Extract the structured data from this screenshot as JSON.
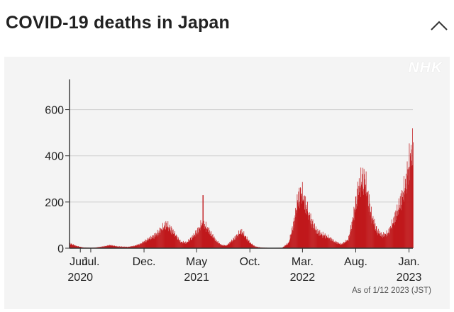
{
  "header": {
    "title": "COVID-19 deaths in Japan"
  },
  "panel": {
    "logo": "NHK",
    "note": "As of 1/12 2023 (JST)"
  },
  "chart_data": {
    "type": "bar",
    "title": "COVID-19 deaths in Japan",
    "xlabel": "",
    "ylabel": "",
    "ylim": [
      0,
      700
    ],
    "yticks": [
      0,
      200,
      400,
      600
    ],
    "grid": "horizontal",
    "bar_color": "#c0191c",
    "x_start": "2020-05-01",
    "x_end": "2023-01-12",
    "xtick_labels": [
      {
        "date": "2020-06-01",
        "label": "Jun.",
        "year": "2020"
      },
      {
        "date": "2020-07-01",
        "label": "Jul.",
        "year": ""
      },
      {
        "date": "2020-12-01",
        "label": "Dec.",
        "year": ""
      },
      {
        "date": "2021-05-01",
        "label": "May",
        "year": "2021"
      },
      {
        "date": "2021-10-01",
        "label": "Oct.",
        "year": ""
      },
      {
        "date": "2022-03-01",
        "label": "Mar.",
        "year": "2022"
      },
      {
        "date": "2022-08-01",
        "label": "Aug.",
        "year": ""
      },
      {
        "date": "2023-01-01",
        "label": "Jan.",
        "year": "2023"
      }
    ],
    "series": [
      {
        "points": [
          [
            "2020-05-01",
            22
          ],
          [
            "2020-05-20",
            10
          ],
          [
            "2020-06-10",
            3
          ],
          [
            "2020-07-01",
            2
          ],
          [
            "2020-07-15",
            3
          ],
          [
            "2020-08-05",
            8
          ],
          [
            "2020-08-25",
            14
          ],
          [
            "2020-09-15",
            8
          ],
          [
            "2020-10-15",
            6
          ],
          [
            "2020-11-01",
            10
          ],
          [
            "2020-11-20",
            20
          ],
          [
            "2020-12-10",
            40
          ],
          [
            "2021-01-01",
            60
          ],
          [
            "2021-01-20",
            90
          ],
          [
            "2021-02-01",
            110
          ],
          [
            "2021-02-10",
            100
          ],
          [
            "2021-02-25",
            70
          ],
          [
            "2021-03-15",
            30
          ],
          [
            "2021-04-01",
            25
          ],
          [
            "2021-04-20",
            55
          ],
          [
            "2021-05-05",
            85
          ],
          [
            "2021-05-15",
            115
          ],
          [
            "2021-05-25",
            105
          ],
          [
            "2021-06-10",
            70
          ],
          [
            "2021-06-25",
            35
          ],
          [
            "2021-07-10",
            15
          ],
          [
            "2021-07-25",
            12
          ],
          [
            "2021-08-10",
            35
          ],
          [
            "2021-08-25",
            60
          ],
          [
            "2021-09-05",
            80
          ],
          [
            "2021-09-15",
            60
          ],
          [
            "2021-10-01",
            25
          ],
          [
            "2021-10-15",
            8
          ],
          [
            "2021-11-01",
            3
          ],
          [
            "2021-12-01",
            1
          ],
          [
            "2022-01-01",
            2
          ],
          [
            "2022-01-20",
            25
          ],
          [
            "2022-02-05",
            130
          ],
          [
            "2022-02-15",
            230
          ],
          [
            "2022-02-25",
            265
          ],
          [
            "2022-03-10",
            200
          ],
          [
            "2022-03-25",
            130
          ],
          [
            "2022-04-10",
            80
          ],
          [
            "2022-04-25",
            65
          ],
          [
            "2022-05-15",
            50
          ],
          [
            "2022-06-01",
            30
          ],
          [
            "2022-06-20",
            18
          ],
          [
            "2022-07-10",
            40
          ],
          [
            "2022-07-25",
            150
          ],
          [
            "2022-08-05",
            260
          ],
          [
            "2022-08-15",
            310
          ],
          [
            "2022-08-25",
            330
          ],
          [
            "2022-09-05",
            240
          ],
          [
            "2022-09-15",
            150
          ],
          [
            "2022-10-01",
            80
          ],
          [
            "2022-10-15",
            60
          ],
          [
            "2022-11-01",
            70
          ],
          [
            "2022-11-15",
            120
          ],
          [
            "2022-12-01",
            190
          ],
          [
            "2022-12-15",
            260
          ],
          [
            "2022-12-25",
            330
          ],
          [
            "2023-01-05",
            440
          ],
          [
            "2023-01-12",
            470
          ]
        ]
      }
    ],
    "spikes": [
      [
        "2021-05-18",
        230
      ]
    ]
  }
}
